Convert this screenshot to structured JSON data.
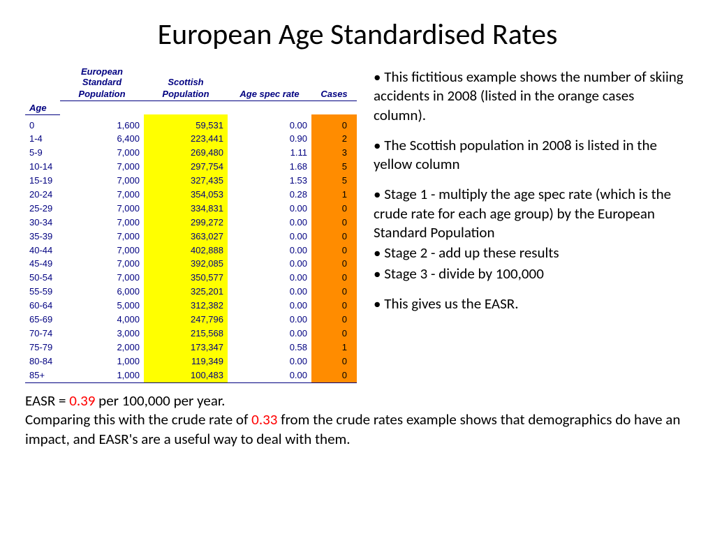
{
  "title": "European Age Standardised Rates",
  "table": {
    "headers": {
      "age": "Age",
      "euro_top": "European",
      "euro_bot": "Standard",
      "euro_sub": "Population",
      "scot_top": "Scottish",
      "scot_sub": "Population",
      "rate": "Age spec rate",
      "cases": "Cases"
    },
    "rows": [
      {
        "age": "0",
        "euro": "1,600",
        "scot": "59,531",
        "rate": "0.00",
        "cases": "0"
      },
      {
        "age": "1-4",
        "euro": "6,400",
        "scot": "223,441",
        "rate": "0.90",
        "cases": "2"
      },
      {
        "age": "5-9",
        "euro": "7,000",
        "scot": "269,480",
        "rate": "1.11",
        "cases": "3"
      },
      {
        "age": "10-14",
        "euro": "7,000",
        "scot": "297,754",
        "rate": "1.68",
        "cases": "5"
      },
      {
        "age": "15-19",
        "euro": "7,000",
        "scot": "327,435",
        "rate": "1.53",
        "cases": "5"
      },
      {
        "age": "20-24",
        "euro": "7,000",
        "scot": "354,053",
        "rate": "0.28",
        "cases": "1"
      },
      {
        "age": "25-29",
        "euro": "7,000",
        "scot": "334,831",
        "rate": "0.00",
        "cases": "0"
      },
      {
        "age": "30-34",
        "euro": "7,000",
        "scot": "299,272",
        "rate": "0.00",
        "cases": "0"
      },
      {
        "age": "35-39",
        "euro": "7,000",
        "scot": "363,027",
        "rate": "0.00",
        "cases": "0"
      },
      {
        "age": "40-44",
        "euro": "7,000",
        "scot": "402,888",
        "rate": "0.00",
        "cases": "0"
      },
      {
        "age": "45-49",
        "euro": "7,000",
        "scot": "392,085",
        "rate": "0.00",
        "cases": "0"
      },
      {
        "age": "50-54",
        "euro": "7,000",
        "scot": "350,577",
        "rate": "0.00",
        "cases": "0"
      },
      {
        "age": "55-59",
        "euro": "6,000",
        "scot": "325,201",
        "rate": "0.00",
        "cases": "0"
      },
      {
        "age": "60-64",
        "euro": "5,000",
        "scot": "312,382",
        "rate": "0.00",
        "cases": "0"
      },
      {
        "age": "65-69",
        "euro": "4,000",
        "scot": "247,796",
        "rate": "0.00",
        "cases": "0"
      },
      {
        "age": "70-74",
        "euro": "3,000",
        "scot": "215,568",
        "rate": "0.00",
        "cases": "0"
      },
      {
        "age": "75-79",
        "euro": "2,000",
        "scot": "173,347",
        "rate": "0.58",
        "cases": "1"
      },
      {
        "age": "80-84",
        "euro": "1,000",
        "scot": "119,349",
        "rate": "0.00",
        "cases": "0"
      },
      {
        "age": "85+",
        "euro": "1,000",
        "scot": "100,483",
        "rate": "0.00",
        "cases": "0"
      }
    ],
    "colors": {
      "text": "#000080",
      "scot_bg": "#ffff00",
      "cases_bg": "#ff8c00",
      "border": "#000080"
    }
  },
  "notes": {
    "b1": "• This fictitious example shows the number of skiing accidents in 2008 (listed in the orange cases column).",
    "b2": "• The Scottish population in 2008 is listed in the yellow column",
    "b3": "• Stage 1 - multiply the age spec rate (which is the crude rate for each age group) by the European Standard Population",
    "b4": "• Stage 2 - add up these results",
    "b5": "• Stage 3 - divide by 100,000",
    "b6": "• This gives us the EASR."
  },
  "footer": {
    "l1a": "EASR = ",
    "l1b": "0.39",
    "l1c": " per 100,000 per year.",
    "l2a": "Comparing this with the crude rate of ",
    "l2b": "0.33",
    "l2c": " from the crude rates example shows that demographics do have an impact, and EASR's are a useful way to deal with them."
  },
  "accent_color": "#ff0000"
}
